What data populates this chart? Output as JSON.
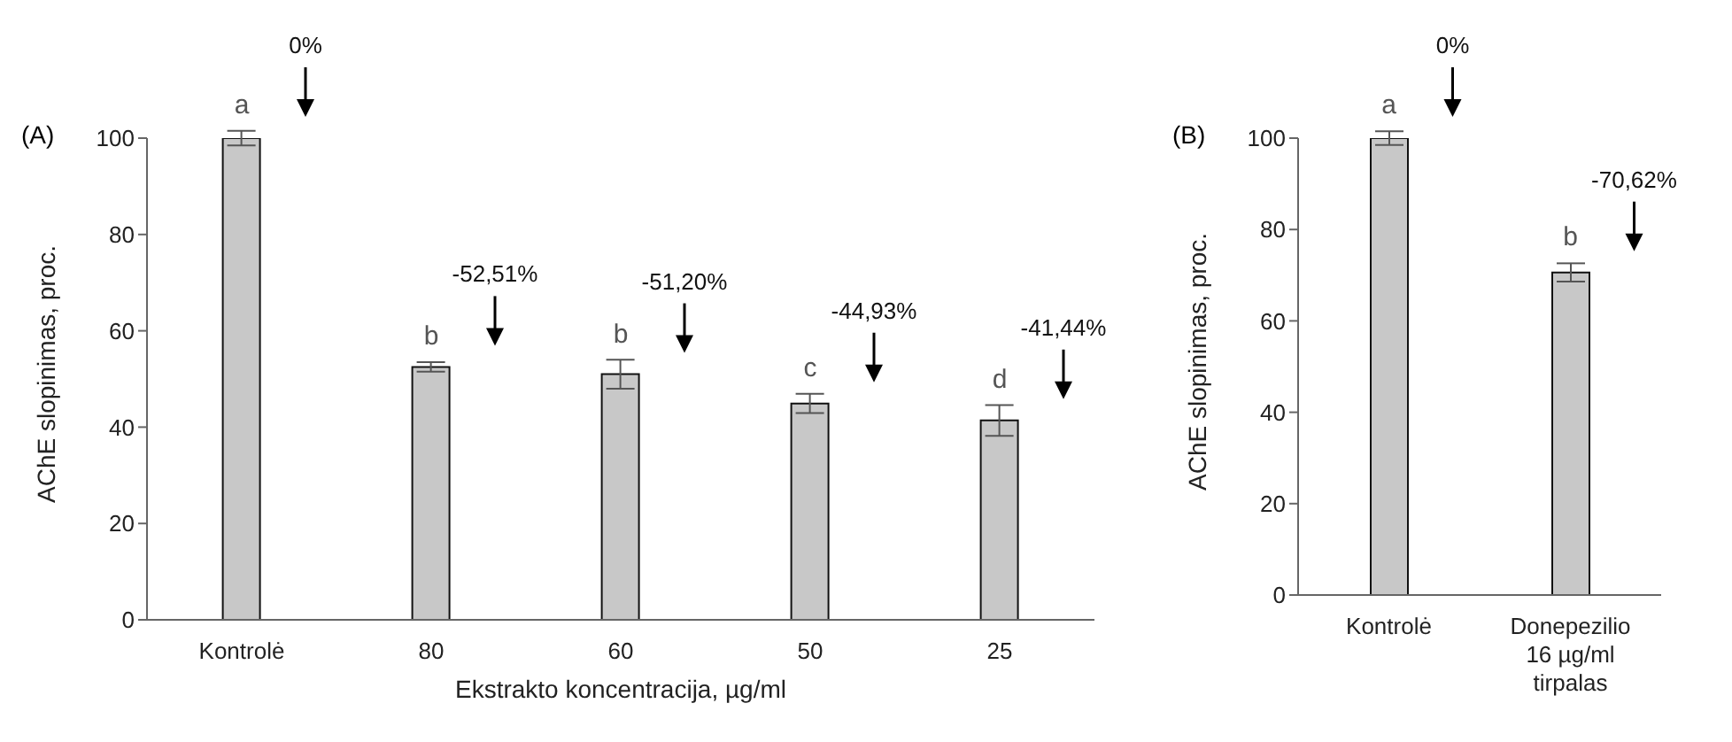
{
  "chart_data": [
    {
      "type": "bar",
      "title": "(A)",
      "xlabel": "Ekstrakto koncentracija, µg/ml",
      "ylabel": "AChE slopinimas, proc.",
      "categories": [
        "Kontrolė",
        "80",
        "60",
        "50",
        "25"
      ],
      "values": [
        100,
        52.5,
        51,
        44.9,
        41.4
      ],
      "errors": [
        1.5,
        1,
        3,
        2,
        3.2
      ],
      "color": "#c8c8c8",
      "ylim": [
        0,
        100
      ],
      "yticks": [
        0,
        20,
        40,
        60,
        80,
        100
      ],
      "grid": false,
      "legend": false,
      "annotations": [
        {
          "text": "a",
          "x": "Kontrolė",
          "y": 100
        },
        "0%",
        {
          "text": "b",
          "x": "80",
          "y": 52.5
        },
        "-52,51%",
        {
          "text": "b",
          "x": "60",
          "y": 51
        },
        "-51,20%",
        {
          "text": "c",
          "x": "50",
          "y": 44.9
        },
        "-44,93%",
        {
          "text": "d",
          "x": "25",
          "y": 41.4
        },
        "-41,44%"
      ]
    },
    {
      "type": "bar",
      "title": "(B)",
      "ylabel": "AChE slopinimas, proc.",
      "categories": [
        "Kontrolė",
        "Donepezilio 16 µg/ml tirpalas"
      ],
      "values": [
        100,
        70.6
      ],
      "errors": [
        1.5,
        2
      ],
      "color": "#c8c8c8",
      "ylim": [
        0,
        100
      ],
      "yticks": [
        0,
        20,
        40,
        60,
        80,
        100
      ],
      "grid": false,
      "legend": false,
      "annotations": [
        {
          "text": "a",
          "x": "Kontrolė",
          "y": 100
        },
        "0%",
        {
          "text": "b",
          "x": "Donepezilio 16 µg/ml tirpalas",
          "y": 70.6
        },
        "-70,62%"
      ]
    }
  ]
}
